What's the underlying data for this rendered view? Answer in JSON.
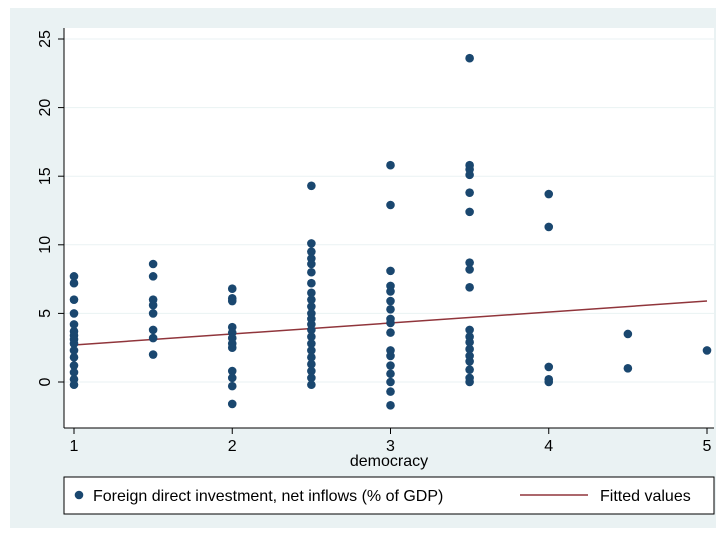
{
  "chart_data": {
    "type": "scatter",
    "xlabel": "democracy",
    "ylabel": "",
    "xlim": [
      1,
      5
    ],
    "ylim": [
      -2,
      25
    ],
    "x_ticks": [
      1,
      2,
      3,
      4,
      5
    ],
    "y_ticks": [
      0,
      5,
      10,
      15,
      20,
      25
    ],
    "grid": "horizontal",
    "legend_position": "bottom",
    "colors": {
      "points": "#1a476f",
      "fit": "#90353b",
      "background": "#eaf2f3"
    },
    "series": [
      {
        "name": "Foreign direct investment, net inflows (% of GDP)",
        "kind": "scatter",
        "points": [
          [
            1,
            7.7
          ],
          [
            1,
            7.2
          ],
          [
            1,
            6.0
          ],
          [
            1,
            5.0
          ],
          [
            1,
            4.2
          ],
          [
            1,
            3.7
          ],
          [
            1,
            3.4
          ],
          [
            1,
            3.1
          ],
          [
            1,
            2.8
          ],
          [
            1,
            2.3
          ],
          [
            1,
            1.8
          ],
          [
            1,
            1.2
          ],
          [
            1,
            0.7
          ],
          [
            1,
            0.2
          ],
          [
            1,
            -0.2
          ],
          [
            1.5,
            8.6
          ],
          [
            1.5,
            7.7
          ],
          [
            1.5,
            6.0
          ],
          [
            1.5,
            5.6
          ],
          [
            1.5,
            5.0
          ],
          [
            1.5,
            3.8
          ],
          [
            1.5,
            3.2
          ],
          [
            1.5,
            2.0
          ],
          [
            2,
            6.8
          ],
          [
            2,
            6.1
          ],
          [
            2,
            5.9
          ],
          [
            2,
            4.0
          ],
          [
            2,
            3.6
          ],
          [
            2,
            3.2
          ],
          [
            2,
            2.8
          ],
          [
            2,
            2.5
          ],
          [
            2,
            0.8
          ],
          [
            2,
            0.3
          ],
          [
            2,
            -0.3
          ],
          [
            2,
            -1.6
          ],
          [
            2.5,
            14.3
          ],
          [
            2.5,
            10.1
          ],
          [
            2.5,
            9.5
          ],
          [
            2.5,
            9.0
          ],
          [
            2.5,
            8.6
          ],
          [
            2.5,
            8.0
          ],
          [
            2.5,
            7.2
          ],
          [
            2.5,
            6.5
          ],
          [
            2.5,
            6.0
          ],
          [
            2.5,
            5.5
          ],
          [
            2.5,
            5.0
          ],
          [
            2.5,
            4.6
          ],
          [
            2.5,
            4.2
          ],
          [
            2.5,
            3.8
          ],
          [
            2.5,
            3.3
          ],
          [
            2.5,
            2.8
          ],
          [
            2.5,
            2.3
          ],
          [
            2.5,
            1.8
          ],
          [
            2.5,
            1.3
          ],
          [
            2.5,
            0.8
          ],
          [
            2.5,
            0.3
          ],
          [
            2.5,
            -0.2
          ],
          [
            3,
            15.8
          ],
          [
            3,
            12.9
          ],
          [
            3,
            8.1
          ],
          [
            3,
            7.0
          ],
          [
            3,
            6.6
          ],
          [
            3,
            5.9
          ],
          [
            3,
            5.3
          ],
          [
            3,
            4.6
          ],
          [
            3,
            4.3
          ],
          [
            3,
            3.6
          ],
          [
            3,
            2.3
          ],
          [
            3,
            1.9
          ],
          [
            3,
            1.2
          ],
          [
            3,
            0.6
          ],
          [
            3,
            0.0
          ],
          [
            3,
            -0.7
          ],
          [
            3,
            -1.7
          ],
          [
            3.5,
            23.6
          ],
          [
            3.5,
            15.8
          ],
          [
            3.5,
            15.5
          ],
          [
            3.5,
            15.1
          ],
          [
            3.5,
            13.8
          ],
          [
            3.5,
            12.4
          ],
          [
            3.5,
            8.7
          ],
          [
            3.5,
            8.2
          ],
          [
            3.5,
            6.9
          ],
          [
            3.5,
            3.8
          ],
          [
            3.5,
            3.3
          ],
          [
            3.5,
            2.9
          ],
          [
            3.5,
            2.4
          ],
          [
            3.5,
            1.9
          ],
          [
            3.5,
            1.5
          ],
          [
            3.5,
            0.9
          ],
          [
            3.5,
            0.3
          ],
          [
            3.5,
            0.0
          ],
          [
            4,
            13.7
          ],
          [
            4,
            11.3
          ],
          [
            4,
            1.1
          ],
          [
            4,
            0.2
          ],
          [
            4,
            0.0
          ],
          [
            4.5,
            3.5
          ],
          [
            4.5,
            1.0
          ],
          [
            5,
            2.3
          ]
        ]
      },
      {
        "name": "Fitted values",
        "kind": "line",
        "points": [
          [
            1,
            2.7
          ],
          [
            5,
            5.9
          ]
        ]
      }
    ]
  }
}
